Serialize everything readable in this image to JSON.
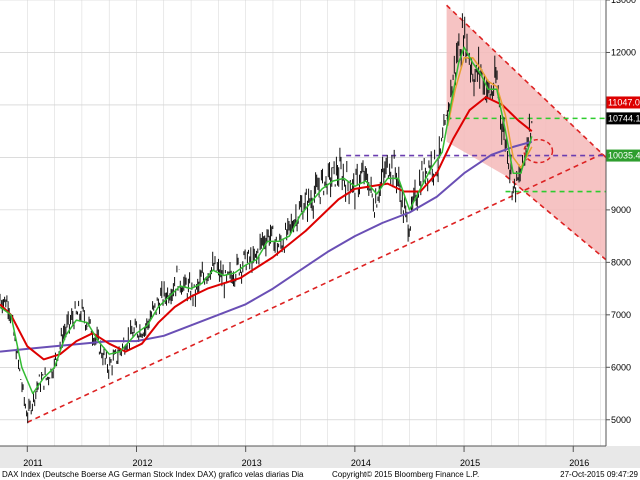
{
  "chart_data": {
    "type": "candlestick-line",
    "footer_left": "DAX Index (Deutsche Boerse AG German Stock Index DAX) grafico velas diarias  Dia",
    "footer_center": "Copyright© 2015 Bloomberg Finance L.P.",
    "footer_right": "27-Oct-2015 09:47:29",
    "x_ticks": [
      {
        "t": 2011.0,
        "label": "2011"
      },
      {
        "t": 2012.0,
        "label": "2012"
      },
      {
        "t": 2013.0,
        "label": "2013"
      },
      {
        "t": 2014.0,
        "label": "2014"
      },
      {
        "t": 2015.0,
        "label": "2015"
      },
      {
        "t": 2016.0,
        "label": "2016"
      }
    ],
    "xlim": [
      2010.75,
      2016.3
    ],
    "ylim": [
      4500,
      13000
    ],
    "y_ticks": [
      5000,
      6000,
      7000,
      8000,
      9000,
      10000,
      11000,
      12000,
      13000
    ],
    "y_tick_labels": [
      "5000",
      "6000",
      "7000",
      "8000",
      "9000",
      "10000",
      "11000",
      "12000",
      "13000"
    ],
    "price_labels": [
      {
        "value": 11047.03,
        "text": "11047.03",
        "color": "#dd0000"
      },
      {
        "value": 10744.17,
        "text": "10744.17",
        "color": "#000000"
      },
      {
        "value": 10035.4,
        "text": "10035.40",
        "color": "#2e9e2e"
      }
    ],
    "price_series": [
      [
        2010.75,
        7300
      ],
      [
        2010.83,
        7250
      ],
      [
        2010.9,
        6300
      ],
      [
        2010.97,
        5400
      ],
      [
        2011.0,
        5080
      ],
      [
        2011.05,
        5350
      ],
      [
        2011.1,
        5700
      ],
      [
        2011.18,
        5800
      ],
      [
        2011.25,
        6050
      ],
      [
        2011.32,
        6600
      ],
      [
        2011.42,
        6950
      ],
      [
        2011.5,
        7050
      ],
      [
        2011.58,
        6750
      ],
      [
        2011.66,
        6400
      ],
      [
        2011.74,
        6000
      ],
      [
        2011.82,
        6200
      ],
      [
        2011.9,
        6500
      ],
      [
        2012.0,
        6700
      ],
      [
        2012.08,
        6750
      ],
      [
        2012.15,
        7050
      ],
      [
        2012.22,
        7300
      ],
      [
        2012.3,
        7450
      ],
      [
        2012.38,
        7700
      ],
      [
        2012.46,
        7500
      ],
      [
        2012.54,
        7400
      ],
      [
        2012.6,
        7700
      ],
      [
        2012.68,
        7900
      ],
      [
        2012.76,
        7800
      ],
      [
        2012.82,
        7600
      ],
      [
        2012.9,
        7850
      ],
      [
        2013.0,
        8050
      ],
      [
        2013.08,
        8000
      ],
      [
        2013.15,
        8400
      ],
      [
        2013.22,
        8550
      ],
      [
        2013.3,
        8300
      ],
      [
        2013.38,
        8500
      ],
      [
        2013.46,
        8900
      ],
      [
        2013.54,
        9100
      ],
      [
        2013.62,
        9250
      ],
      [
        2013.7,
        9500
      ],
      [
        2013.78,
        9600
      ],
      [
        2013.86,
        9750
      ],
      [
        2013.94,
        9500
      ],
      [
        2014.0,
        9400
      ],
      [
        2014.06,
        9650
      ],
      [
        2014.12,
        9550
      ],
      [
        2014.18,
        9100
      ],
      [
        2014.25,
        9600
      ],
      [
        2014.32,
        9900
      ],
      [
        2014.38,
        9700
      ],
      [
        2014.45,
        8950
      ],
      [
        2014.5,
        8700
      ],
      [
        2014.55,
        9200
      ],
      [
        2014.62,
        9700
      ],
      [
        2014.7,
        9900
      ],
      [
        2014.76,
        9850
      ],
      [
        2014.82,
        10400
      ],
      [
        2014.86,
        11000
      ],
      [
        2014.9,
        11500
      ],
      [
        2014.95,
        12100
      ],
      [
        2015.0,
        12350
      ],
      [
        2015.05,
        11900
      ],
      [
        2015.1,
        11500
      ],
      [
        2015.15,
        11700
      ],
      [
        2015.2,
        11300
      ],
      [
        2015.25,
        11200
      ],
      [
        2015.3,
        11500
      ],
      [
        2015.35,
        10600
      ],
      [
        2015.4,
        10150
      ],
      [
        2015.45,
        9400
      ],
      [
        2015.5,
        9550
      ],
      [
        2015.55,
        9900
      ],
      [
        2015.58,
        10400
      ],
      [
        2015.62,
        10800
      ]
    ],
    "ma_green": [
      [
        2010.75,
        7150
      ],
      [
        2010.85,
        7000
      ],
      [
        2010.95,
        6000
      ],
      [
        2011.05,
        5500
      ],
      [
        2011.15,
        5800
      ],
      [
        2011.25,
        6000
      ],
      [
        2011.35,
        6600
      ],
      [
        2011.45,
        6900
      ],
      [
        2011.55,
        6850
      ],
      [
        2011.65,
        6500
      ],
      [
        2011.75,
        6250
      ],
      [
        2011.85,
        6300
      ],
      [
        2012.0,
        6650
      ],
      [
        2012.1,
        6800
      ],
      [
        2012.2,
        7150
      ],
      [
        2012.3,
        7350
      ],
      [
        2012.4,
        7550
      ],
      [
        2012.5,
        7500
      ],
      [
        2012.6,
        7600
      ],
      [
        2012.7,
        7850
      ],
      [
        2012.8,
        7750
      ],
      [
        2012.9,
        7800
      ],
      [
        2013.0,
        7950
      ],
      [
        2013.1,
        8050
      ],
      [
        2013.2,
        8400
      ],
      [
        2013.3,
        8400
      ],
      [
        2013.4,
        8500
      ],
      [
        2013.5,
        8900
      ],
      [
        2013.6,
        9150
      ],
      [
        2013.7,
        9400
      ],
      [
        2013.8,
        9550
      ],
      [
        2013.9,
        9600
      ],
      [
        2014.0,
        9450
      ],
      [
        2014.1,
        9550
      ],
      [
        2014.2,
        9300
      ],
      [
        2014.3,
        9600
      ],
      [
        2014.4,
        9600
      ],
      [
        2014.5,
        9000
      ],
      [
        2014.6,
        9400
      ],
      [
        2014.7,
        9800
      ],
      [
        2014.8,
        10100
      ],
      [
        2014.87,
        10900
      ],
      [
        2014.95,
        11800
      ],
      [
        2015.0,
        12100
      ],
      [
        2015.08,
        11800
      ],
      [
        2015.15,
        11600
      ],
      [
        2015.22,
        11300
      ],
      [
        2015.3,
        11300
      ],
      [
        2015.38,
        10500
      ],
      [
        2015.45,
        9700
      ],
      [
        2015.52,
        9700
      ],
      [
        2015.62,
        10400
      ]
    ],
    "ma_orange": [
      [
        2014.85,
        10600
      ],
      [
        2014.92,
        11300
      ],
      [
        2015.0,
        11900
      ],
      [
        2015.08,
        11900
      ],
      [
        2015.15,
        11700
      ],
      [
        2015.22,
        11450
      ],
      [
        2015.3,
        11350
      ],
      [
        2015.38,
        10800
      ],
      [
        2015.45,
        10000
      ],
      [
        2015.52,
        9800
      ],
      [
        2015.62,
        10200
      ]
    ],
    "ma_red": [
      [
        2010.75,
        7200
      ],
      [
        2010.85,
        7000
      ],
      [
        2011.0,
        6400
      ],
      [
        2011.15,
        6150
      ],
      [
        2011.3,
        6250
      ],
      [
        2011.45,
        6500
      ],
      [
        2011.6,
        6650
      ],
      [
        2011.75,
        6450
      ],
      [
        2011.9,
        6300
      ],
      [
        2012.05,
        6450
      ],
      [
        2012.2,
        6850
      ],
      [
        2012.35,
        7150
      ],
      [
        2012.5,
        7350
      ],
      [
        2012.65,
        7500
      ],
      [
        2012.8,
        7600
      ],
      [
        2012.95,
        7700
      ],
      [
        2013.1,
        7900
      ],
      [
        2013.25,
        8100
      ],
      [
        2013.4,
        8350
      ],
      [
        2013.55,
        8600
      ],
      [
        2013.7,
        8900
      ],
      [
        2013.85,
        9200
      ],
      [
        2014.0,
        9400
      ],
      [
        2014.15,
        9450
      ],
      [
        2014.3,
        9500
      ],
      [
        2014.45,
        9350
      ],
      [
        2014.6,
        9350
      ],
      [
        2014.75,
        9700
      ],
      [
        2014.9,
        10350
      ],
      [
        2015.05,
        10900
      ],
      [
        2015.2,
        11150
      ],
      [
        2015.35,
        11000
      ],
      [
        2015.5,
        10700
      ],
      [
        2015.62,
        10500
      ]
    ],
    "ma_purple": [
      [
        2010.75,
        6300
      ],
      [
        2011.0,
        6350
      ],
      [
        2011.25,
        6400
      ],
      [
        2011.5,
        6450
      ],
      [
        2011.75,
        6500
      ],
      [
        2012.0,
        6500
      ],
      [
        2012.25,
        6600
      ],
      [
        2012.5,
        6800
      ],
      [
        2012.75,
        7000
      ],
      [
        2013.0,
        7200
      ],
      [
        2013.25,
        7500
      ],
      [
        2013.5,
        7850
      ],
      [
        2013.75,
        8200
      ],
      [
        2014.0,
        8500
      ],
      [
        2014.25,
        8750
      ],
      [
        2014.5,
        8950
      ],
      [
        2014.75,
        9250
      ],
      [
        2015.0,
        9700
      ],
      [
        2015.25,
        10050
      ],
      [
        2015.45,
        10200
      ],
      [
        2015.62,
        10300
      ]
    ],
    "lines": [
      {
        "name": "support",
        "color": "#dd2222",
        "dash": true,
        "from": [
          2011.0,
          4950
        ],
        "to": [
          2016.3,
          10100
        ]
      },
      {
        "name": "channel-top",
        "color": "#dd2222",
        "dash": true,
        "from": [
          2014.84,
          12900
        ],
        "to": [
          2016.3,
          10000
        ]
      },
      {
        "name": "channel-bottom",
        "color": "#dd2222",
        "dash": true,
        "from": [
          2015.38,
          9650
        ],
        "to": [
          2016.3,
          8050
        ]
      },
      {
        "name": "level-10744",
        "color": "#2ecc2e",
        "dash": true,
        "from": [
          2014.84,
          10744
        ],
        "to": [
          2016.3,
          10744
        ]
      },
      {
        "name": "level-10035",
        "color": "#6a3db0",
        "dash": true,
        "from": [
          2013.92,
          10035
        ],
        "to": [
          2016.3,
          10035
        ]
      },
      {
        "name": "level-9350",
        "color": "#2ecc2e",
        "dash": true,
        "from": [
          2015.38,
          9350
        ],
        "to": [
          2016.3,
          9350
        ]
      }
    ],
    "channel_fill": {
      "color": "#f4b8b8",
      "points": [
        [
          2014.84,
          12900
        ],
        [
          2016.3,
          10000
        ],
        [
          2016.3,
          8050
        ],
        [
          2015.38,
          9650
        ],
        [
          2014.84,
          10300
        ]
      ]
    },
    "ellipse": {
      "cx": 2015.68,
      "cy": 10120,
      "rx": 0.13,
      "ry": 220,
      "color": "#dd2222"
    },
    "grid": true
  }
}
